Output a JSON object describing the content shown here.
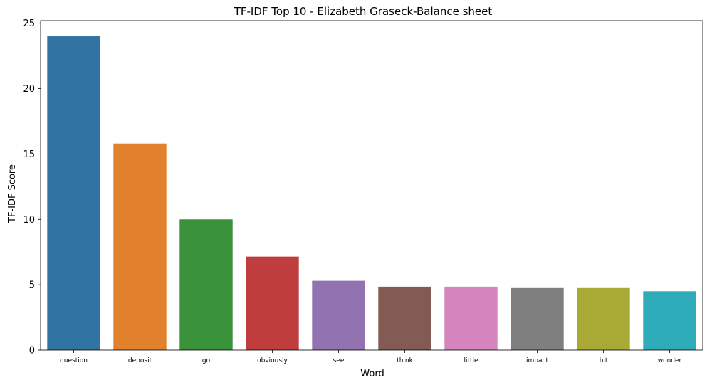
{
  "chart_data": {
    "type": "bar",
    "title": "TF-IDF Top 10 - Elizabeth Graseck-Balance sheet",
    "xlabel": "Word",
    "ylabel": "TF-IDF Score",
    "categories": [
      "question",
      "deposit",
      "go",
      "obviously",
      "see",
      "think",
      "little",
      "impact",
      "bit",
      "wonder"
    ],
    "values": [
      24.0,
      15.8,
      10.0,
      7.15,
      5.3,
      4.85,
      4.85,
      4.8,
      4.8,
      4.5
    ],
    "colors": [
      "#3274a1",
      "#e1812c",
      "#3a923a",
      "#c03d3e",
      "#9372b2",
      "#845b53",
      "#d684bd",
      "#7f7f7f",
      "#a9aa35",
      "#2eabb8"
    ],
    "ylim": [
      0,
      25.2
    ],
    "yticks": [
      0,
      5,
      10,
      15,
      20,
      25
    ],
    "grid": false,
    "legend": "none"
  }
}
